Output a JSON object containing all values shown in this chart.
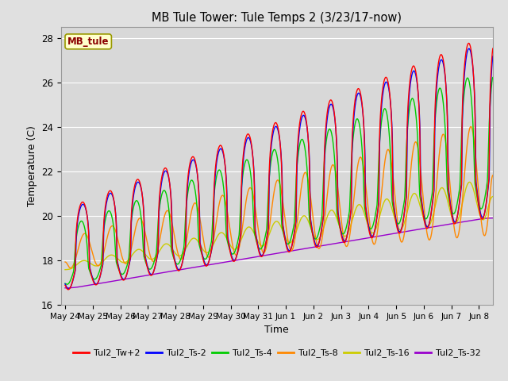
{
  "title": "MB Tule Tower: Tule Temps 2 (3/23/17-now)",
  "xlabel": "Time",
  "ylabel": "Temperature (C)",
  "ylim": [
    16,
    28.5
  ],
  "xlim_start": -0.15,
  "xlim_end": 15.5,
  "background_color": "#e0e0e0",
  "plot_bg_color": "#d8d8d8",
  "grid_color": "#ffffff",
  "legend_label": "MB_tule",
  "legend_text_color": "#8b0000",
  "legend_bg": "#ffffcc",
  "legend_border": "#999900",
  "series_colors": [
    "#ff0000",
    "#0000ff",
    "#00cc00",
    "#ff8800",
    "#cccc00",
    "#9900cc"
  ],
  "series_labels": [
    "Tul2_Tw+2",
    "Tul2_Ts-2",
    "Tul2_Ts-4",
    "Tul2_Ts-8",
    "Tul2_Ts-16",
    "Tul2_Ts-32"
  ],
  "xtick_labels": [
    "May 24",
    "May 25",
    "May 26",
    "May 27",
    "May 28",
    "May 29",
    "May 30",
    "May 31",
    "Jun 1",
    "Jun 2",
    "Jun 3",
    "Jun 4",
    "Jun 5",
    "Jun 6",
    "Jun 7",
    "Jun 8"
  ],
  "xtick_positions": [
    0,
    1,
    2,
    3,
    4,
    5,
    6,
    7,
    8,
    9,
    10,
    11,
    12,
    13,
    14,
    15
  ],
  "ytick_labels": [
    "16",
    "18",
    "20",
    "22",
    "24",
    "26",
    "28"
  ],
  "ytick_positions": [
    16,
    18,
    20,
    22,
    24,
    26,
    28
  ]
}
